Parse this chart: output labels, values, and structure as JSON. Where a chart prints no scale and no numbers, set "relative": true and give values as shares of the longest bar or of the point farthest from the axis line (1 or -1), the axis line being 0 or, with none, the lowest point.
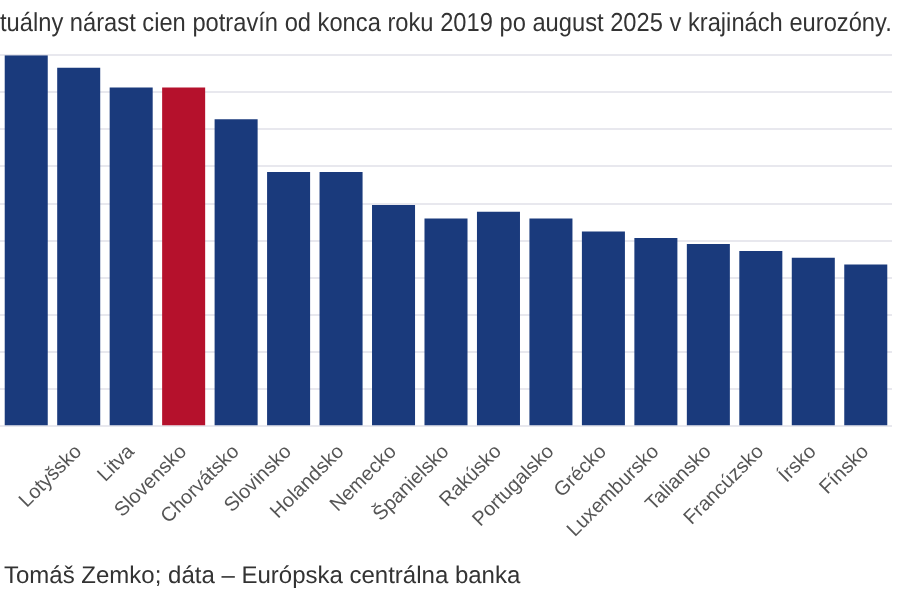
{
  "chart_data": {
    "type": "bar",
    "title": "tuálny nárast cien potravín od konca roku 2019 po august 2025 v krajinách eurozóny.",
    "categories": [
      null,
      "Lotyšsko",
      "Litva",
      "Slovensko",
      "Chorvátsko",
      "Slovinsko",
      "Holandsko",
      "Nemecko",
      "Španielsko",
      "Rakúsko",
      "Portugalsko",
      "Grécko",
      "Luxembursko",
      "Taliansko",
      "Francúzsko",
      "Írsko",
      "Fínsko"
    ],
    "values": [
      1,
      0.966,
      0.913,
      0.913,
      0.827,
      0.685,
      0.685,
      0.596,
      0.56,
      0.578,
      0.56,
      0.525,
      0.507,
      0.491,
      0.472,
      0.454,
      0.436
    ],
    "colors": [
      "#1a3a7c",
      "#1a3a7c",
      "#1a3a7c",
      "#b5112c",
      "#1a3a7c",
      "#1a3a7c",
      "#1a3a7c",
      "#1a3a7c",
      "#1a3a7c",
      "#1a3a7c",
      "#1a3a7c",
      "#1a3a7c",
      "#1a3a7c",
      "#1a3a7c",
      "#1a3a7c",
      "#1a3a7c",
      "#1a3a7c"
    ],
    "relative": true,
    "grid": "y",
    "legend": false,
    "annotations": [
      "Tomáš Zemko; dáta – Európska centrálna banka"
    ]
  }
}
